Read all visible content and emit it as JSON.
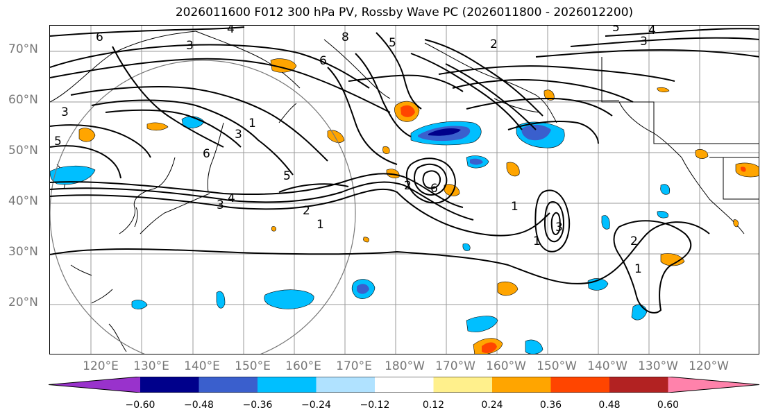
{
  "title": "2026011600 F012 300 hPa PV, Rossby Wave PC (2026011800 - 2026012200)",
  "lat_labels": [
    "70°N",
    "60°N",
    "50°N",
    "40°N",
    "30°N",
    "20°N"
  ],
  "lon_labels": [
    "120°E",
    "130°E",
    "140°E",
    "150°E",
    "160°E",
    "170°E",
    "180°W",
    "170°W",
    "160°W",
    "150°W",
    "140°W",
    "130°W",
    "120°W"
  ],
  "contour_labels": [
    "6",
    "4",
    "3",
    "8",
    "5",
    "3",
    "4",
    "2",
    "3",
    "3",
    "5",
    "6",
    "1",
    "5",
    "6",
    "5",
    "4",
    "3",
    "2",
    "1",
    "2",
    "6",
    "1",
    "3",
    "1",
    "2",
    "1"
  ],
  "colorbar": {
    "ticks": [
      "−0.60",
      "−0.48",
      "−0.36",
      "−0.24",
      "−0.12",
      "0.12",
      "0.24",
      "0.36",
      "0.48",
      "0.60"
    ],
    "colors": [
      "#9932cc",
      "#00008b",
      "#3a5fcd",
      "#00bfff",
      "#b0e2ff",
      "#ffffff",
      "#fff08c",
      "#ffa500",
      "#ff4500",
      "#b22222",
      "#ff82ab"
    ]
  }
}
